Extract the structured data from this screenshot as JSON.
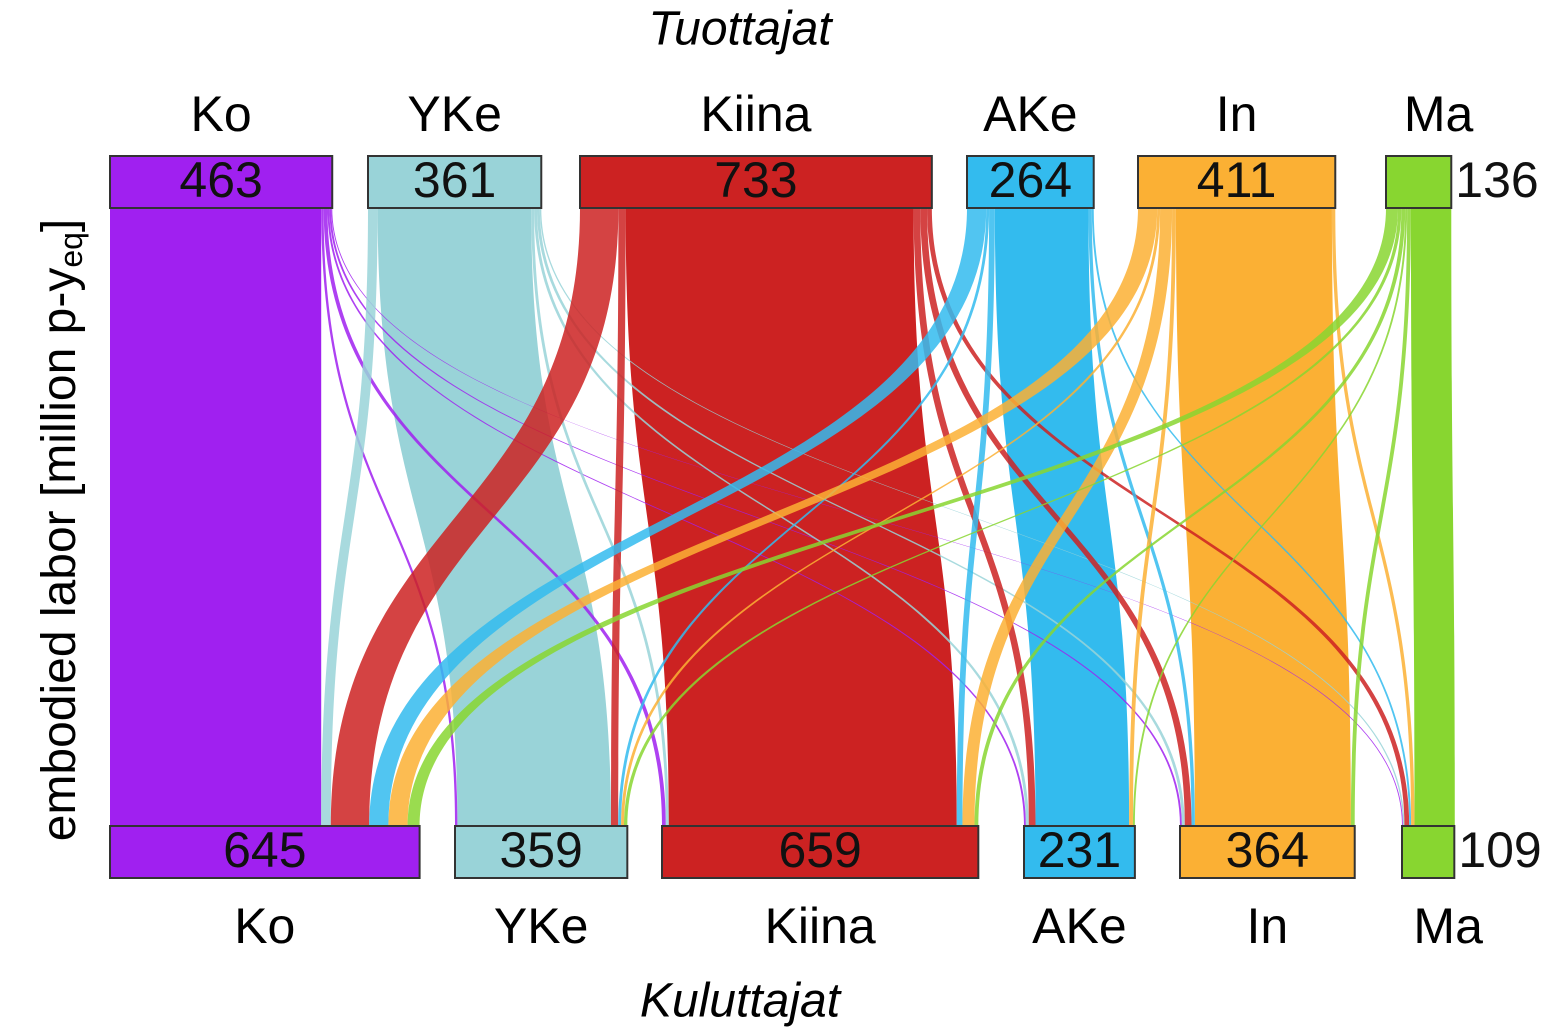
{
  "chart_data": {
    "type": "sankey",
    "top_label": "Tuottajat",
    "bottom_label": "Kuluttajat",
    "y_label": {
      "text": "embodied labor [million p-y",
      "subscript": "eq",
      "end": "]"
    },
    "producers": [
      {
        "name": "Ko",
        "value": 463,
        "color": "#a020f0"
      },
      {
        "name": "YKe",
        "value": 361,
        "color": "#99d3d8"
      },
      {
        "name": "Kiina",
        "value": 733,
        "color": "#cc2222"
      },
      {
        "name": "AKe",
        "value": 264,
        "color": "#33bbee"
      },
      {
        "name": "In",
        "value": 411,
        "color": "#fbb034"
      },
      {
        "name": "Ma",
        "value": 136,
        "color": "#88d630"
      }
    ],
    "consumers": [
      {
        "name": "Ko",
        "value": 645,
        "color": "#a020f0"
      },
      {
        "name": "YKe",
        "value": 359,
        "color": "#99d3d8"
      },
      {
        "name": "Kiina",
        "value": 659,
        "color": "#cc2222"
      },
      {
        "name": "AKe",
        "value": 231,
        "color": "#33bbee"
      },
      {
        "name": "In",
        "value": 364,
        "color": "#fbb034"
      },
      {
        "name": "Ma",
        "value": 109,
        "color": "#88d630"
      }
    ],
    "flows": [
      [
        440,
        5,
        8,
        4,
        4,
        2
      ],
      [
        20,
        320,
        6,
        6,
        6,
        3
      ],
      [
        80,
        15,
        600,
        14,
        14,
        10
      ],
      [
        40,
        6,
        12,
        195,
        7,
        4
      ],
      [
        40,
        6,
        25,
        8,
        325,
        7
      ],
      [
        25,
        7,
        8,
        4,
        8,
        84
      ]
    ]
  }
}
